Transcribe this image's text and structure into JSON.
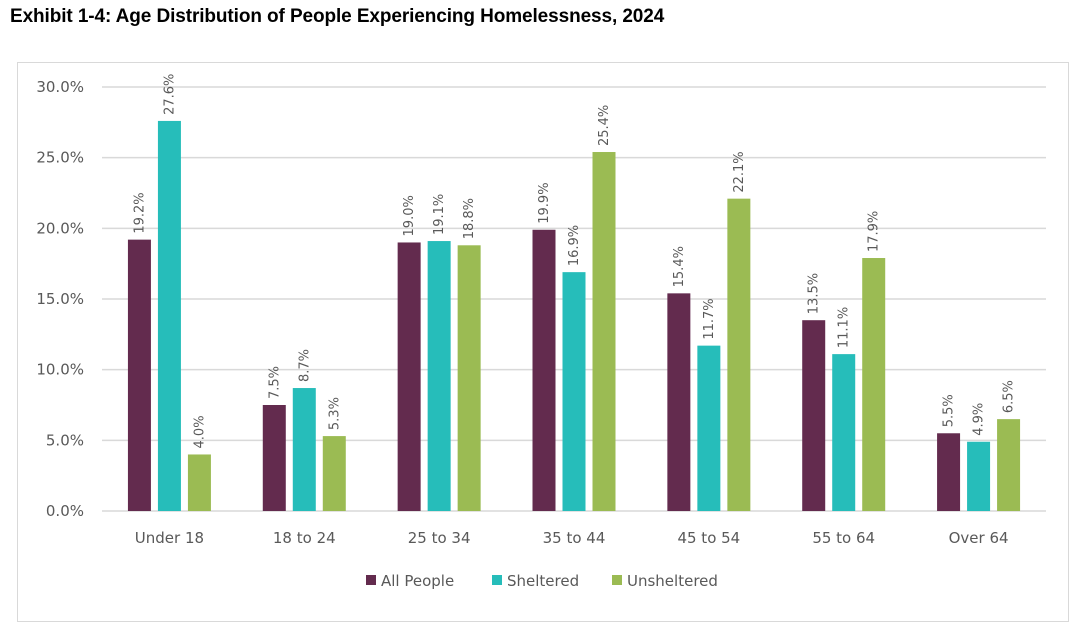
{
  "title": "Exhibit 1-4: Age Distribution of People Experiencing Homelessness, 2024",
  "chart_data": {
    "type": "bar",
    "title": "Exhibit 1-4: Age Distribution of People Experiencing Homelessness, 2024",
    "xlabel": "",
    "ylabel": "",
    "ylim": [
      0,
      30
    ],
    "yticks": [
      0,
      5,
      10,
      15,
      20,
      25,
      30
    ],
    "ytick_labels": [
      "0.0%",
      "5.0%",
      "10.0%",
      "15.0%",
      "20.0%",
      "25.0%",
      "30.0%"
    ],
    "grid": true,
    "legend_position": "bottom",
    "categories": [
      "Under 18",
      "18 to 24",
      "25 to 34",
      "35 to 44",
      "45 to 54",
      "55 to 64",
      "Over 64"
    ],
    "series": [
      {
        "name": "All People",
        "color": "#632B4E",
        "values": [
          19.2,
          7.5,
          19.0,
          19.9,
          15.4,
          13.5,
          5.5
        ],
        "labels": [
          "19.2%",
          "7.5%",
          "19.0%",
          "19.9%",
          "15.4%",
          "13.5%",
          "5.5%"
        ]
      },
      {
        "name": "Sheltered",
        "color": "#26BDBA",
        "values": [
          27.6,
          8.7,
          19.1,
          16.9,
          11.7,
          11.1,
          4.9
        ],
        "labels": [
          "27.6%",
          "8.7%",
          "19.1%",
          "16.9%",
          "11.7%",
          "11.1%",
          "4.9%"
        ]
      },
      {
        "name": "Unsheltered",
        "color": "#9BBB53",
        "values": [
          4.0,
          5.3,
          18.8,
          25.4,
          22.1,
          17.9,
          6.5
        ],
        "labels": [
          "4.0%",
          "5.3%",
          "18.8%",
          "25.4%",
          "22.1%",
          "17.9%",
          "6.5%"
        ]
      }
    ]
  }
}
